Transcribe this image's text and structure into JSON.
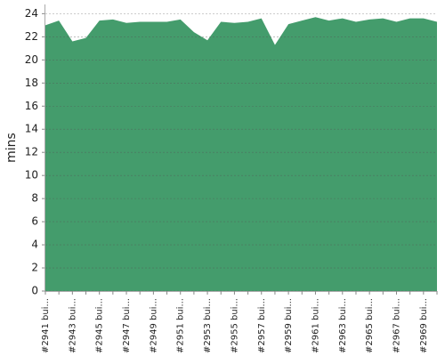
{
  "chart_data": {
    "type": "area",
    "y_label": "mins",
    "categories": [
      "#2941 bui...",
      null,
      "#2943 bui...",
      null,
      "#2945 bui...",
      null,
      "#2947 bui...",
      null,
      "#2949 bui...",
      null,
      "#2951 bui...",
      null,
      "#2953 bui...",
      null,
      "#2955 bui...",
      null,
      "#2957 bui...",
      null,
      "#2959 bui...",
      null,
      "#2961 bui...",
      null,
      "#2963 bui...",
      null,
      "#2965 bui...",
      null,
      "#2967 bui...",
      null,
      "#2969 bui...",
      null
    ],
    "values": [
      23.0,
      23.4,
      21.6,
      21.9,
      23.4,
      23.5,
      23.2,
      23.3,
      23.3,
      23.3,
      23.5,
      22.4,
      21.7,
      23.3,
      23.2,
      23.3,
      23.6,
      21.3,
      23.1,
      23.4,
      23.7,
      23.4,
      23.6,
      23.3,
      23.5,
      23.6,
      23.3,
      23.6,
      23.6,
      23.3
    ],
    "color": "#449c6c",
    "ylim": [
      0,
      24.8
    ],
    "yticks": [
      0,
      2,
      4,
      6,
      8,
      10,
      12,
      14,
      16,
      18,
      20,
      22,
      24
    ],
    "grid": true
  }
}
